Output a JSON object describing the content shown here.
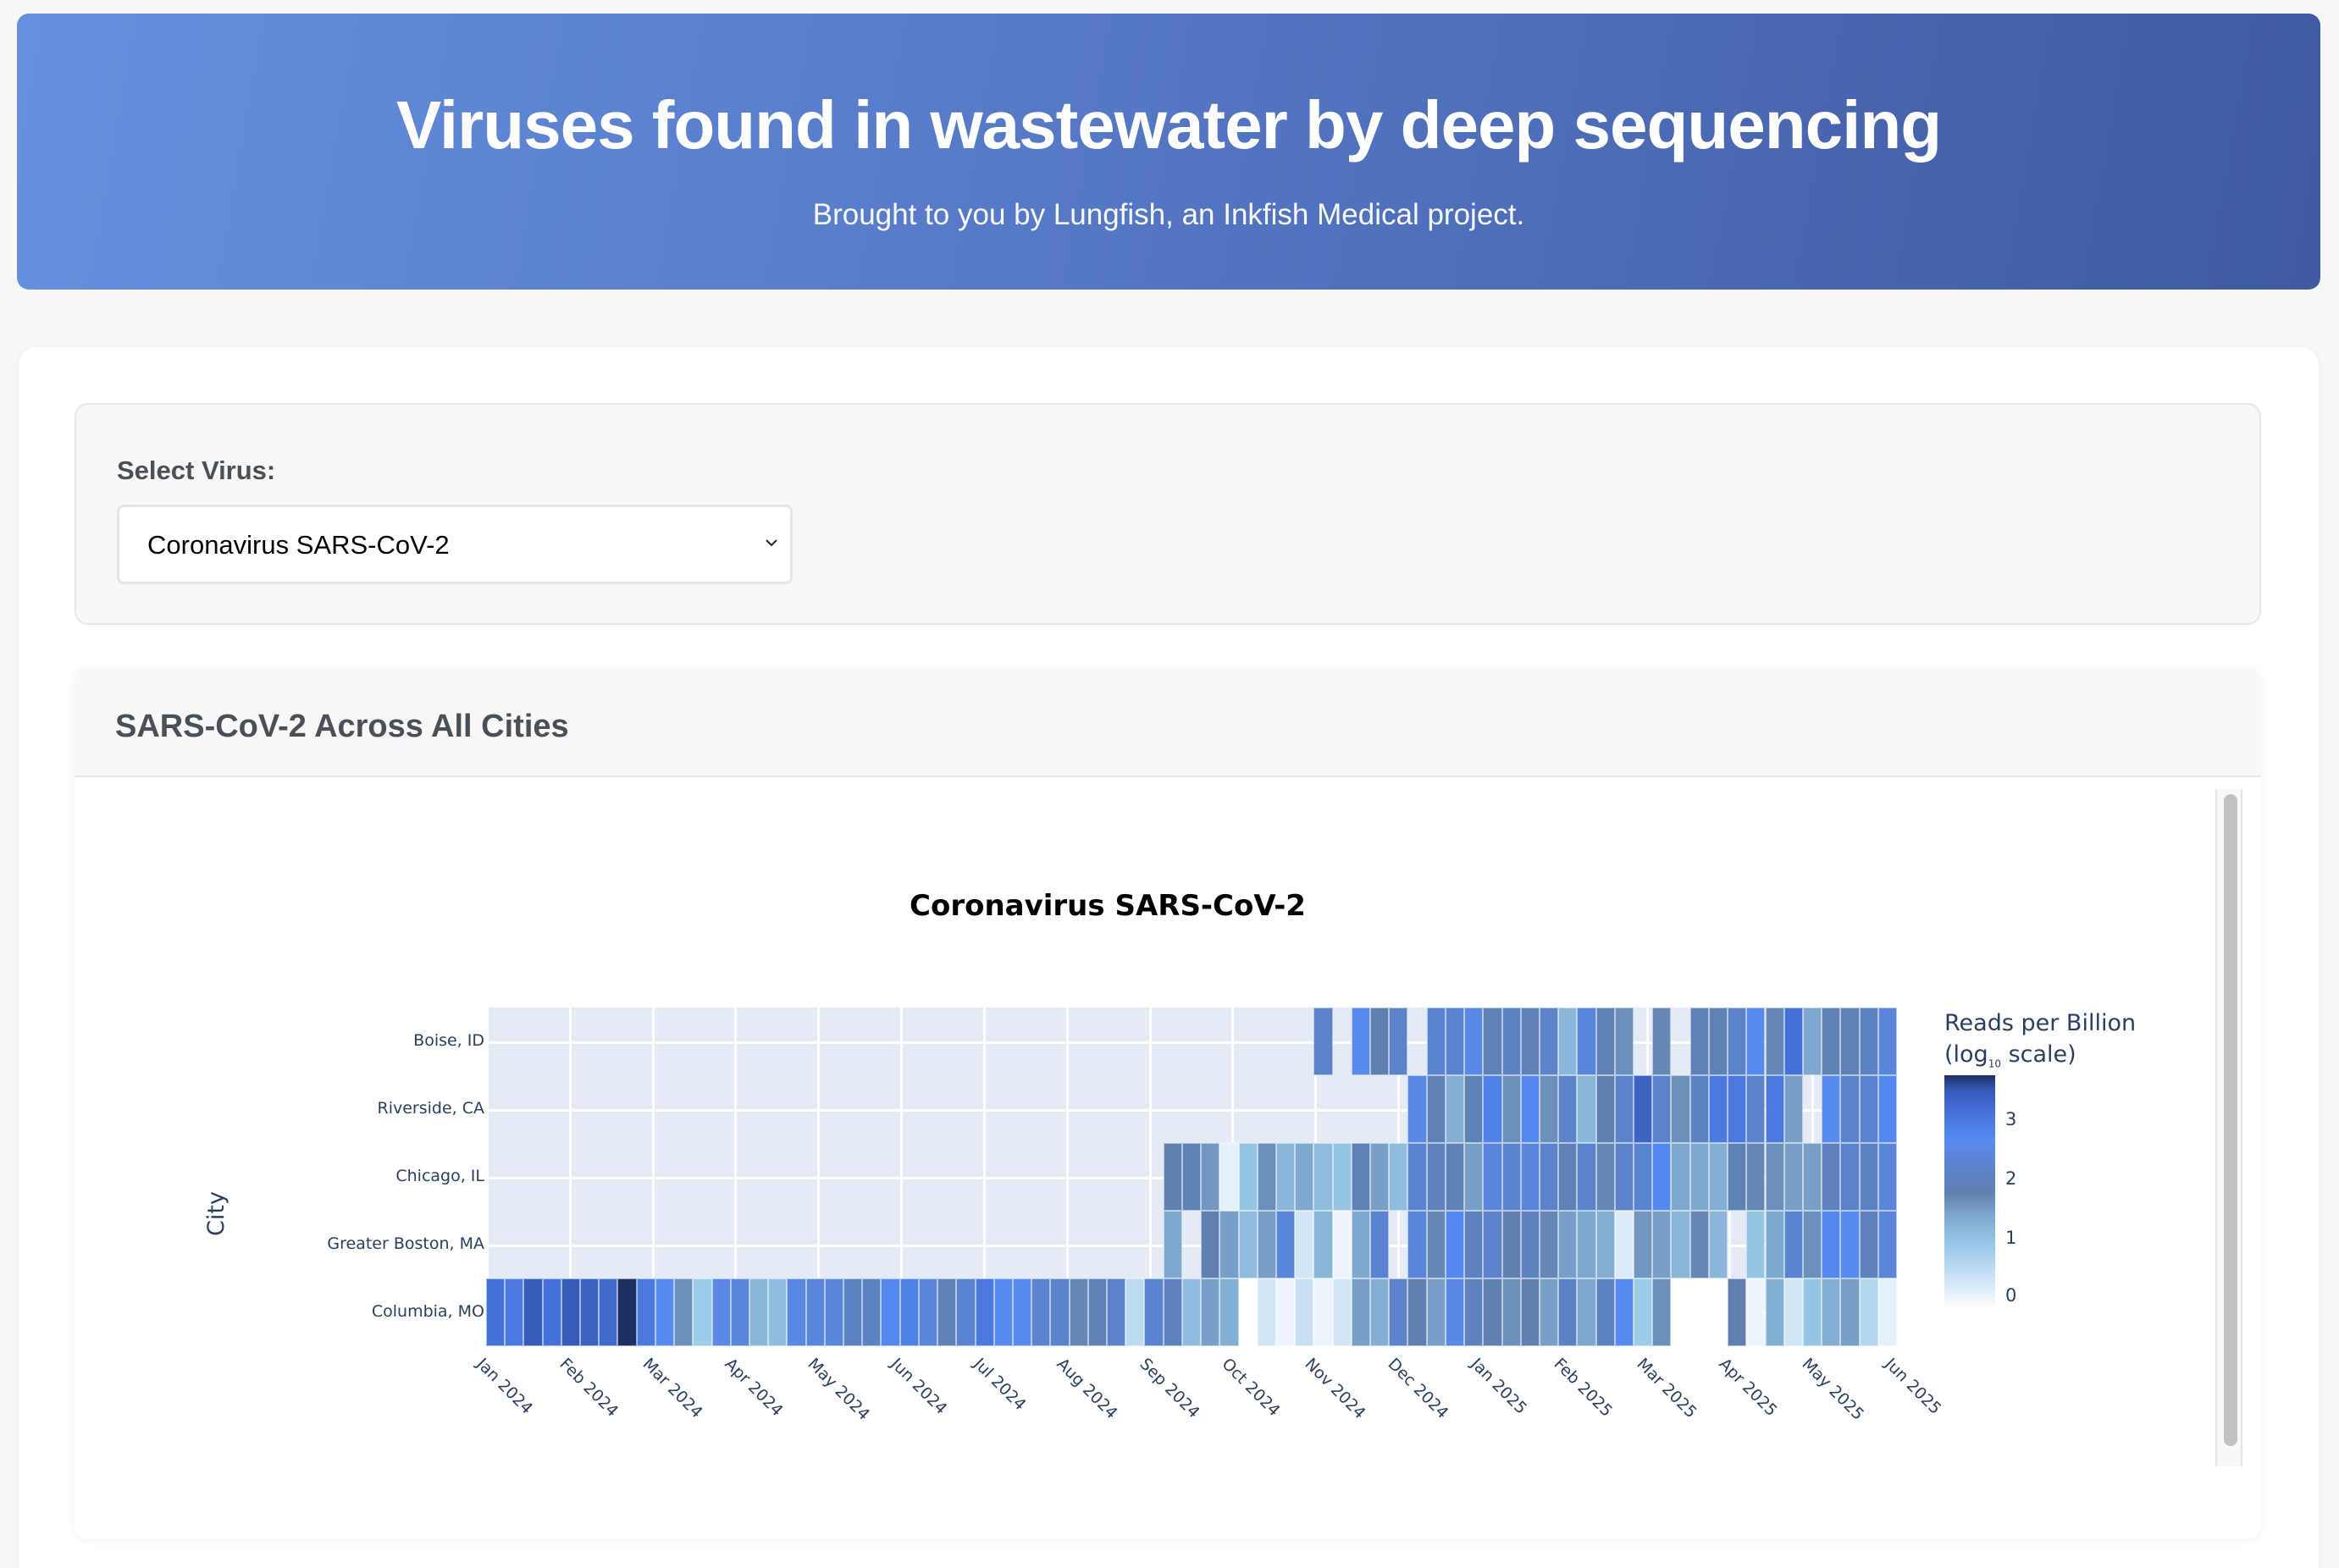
{
  "header": {
    "title": "Viruses found in wastewater by deep sequencing",
    "subtitle": "Brought to you by Lungfish, an Inkfish Medical project."
  },
  "controls": {
    "select_label": "Select Virus:",
    "selected_virus": "Coronavirus SARS-CoV-2"
  },
  "chart_card": {
    "heading": "SARS-CoV-2 Across All Cities"
  },
  "chart_data": {
    "type": "heatmap",
    "title": "Coronavirus SARS-CoV-2",
    "xlabel": "",
    "ylabel": "City",
    "x_tick_labels": [
      "Jan 2024",
      "Feb 2024",
      "Mar 2024",
      "Apr 2024",
      "May 2024",
      "Jun 2024",
      "Jul 2024",
      "Aug 2024",
      "Sep 2024",
      "Oct 2024",
      "Nov 2024",
      "Dec 2024",
      "Jan 2025",
      "Feb 2025",
      "Mar 2025",
      "Apr 2025",
      "May 2025",
      "Jun 2025"
    ],
    "x_unit": "week",
    "n_weeks": 75,
    "categories_y": [
      "Boise, ID",
      "Riverside, CA",
      "Chicago, IL",
      "Greater Boston, MA",
      "Columbia, MO"
    ],
    "colorbar": {
      "title": "Reads per Billion (log10 scale)",
      "ticks": [
        0,
        1,
        2,
        3
      ],
      "range": [
        0,
        3.9
      ]
    },
    "colorscale": [
      "#ffffff",
      "#d7e9f7",
      "#9ccbe8",
      "#7ea8cd",
      "#5f80b0",
      "#5b84d0",
      "#578cf2",
      "#4572d9",
      "#3558b3",
      "#1b2f63"
    ],
    "series": [
      {
        "name": "Boise, ID",
        "values": [
          null,
          null,
          null,
          null,
          null,
          null,
          null,
          null,
          null,
          null,
          null,
          null,
          null,
          null,
          null,
          null,
          null,
          null,
          null,
          null,
          null,
          null,
          null,
          null,
          null,
          null,
          null,
          null,
          null,
          null,
          null,
          null,
          null,
          null,
          null,
          null,
          null,
          null,
          null,
          null,
          null,
          null,
          null,
          null,
          2.4,
          null,
          2.8,
          2.0,
          2.4,
          null,
          2.5,
          2.5,
          2.7,
          2.1,
          2.3,
          2.1,
          2.4,
          1.3,
          2.6,
          2.1,
          1.8,
          null,
          1.9,
          null,
          2.1,
          2.1,
          2.4,
          2.8,
          1.9,
          3.2,
          1.5,
          2.1,
          2.1,
          2.3,
          2.6
        ]
      },
      {
        "name": "Riverside, CA",
        "values": [
          null,
          null,
          null,
          null,
          null,
          null,
          null,
          null,
          null,
          null,
          null,
          null,
          null,
          null,
          null,
          null,
          null,
          null,
          null,
          null,
          null,
          null,
          null,
          null,
          null,
          null,
          null,
          null,
          null,
          null,
          null,
          null,
          null,
          null,
          null,
          null,
          null,
          null,
          null,
          null,
          null,
          null,
          null,
          null,
          null,
          null,
          null,
          null,
          null,
          2.7,
          2.1,
          1.4,
          2.1,
          3.0,
          1.8,
          2.9,
          1.8,
          2.4,
          1.3,
          2.0,
          2.4,
          3.4,
          2.4,
          1.8,
          2.3,
          3.1,
          3.1,
          2.4,
          3.1,
          1.6,
          null,
          2.8,
          2.4,
          2.5,
          2.9
        ]
      },
      {
        "name": "Chicago, IL",
        "values": [
          null,
          null,
          null,
          null,
          null,
          null,
          null,
          null,
          null,
          null,
          null,
          null,
          null,
          null,
          null,
          null,
          null,
          null,
          null,
          null,
          null,
          null,
          null,
          null,
          null,
          null,
          null,
          null,
          null,
          null,
          null,
          null,
          null,
          null,
          null,
          null,
          2.0,
          2.1,
          1.7,
          0.3,
          1.1,
          1.8,
          1.3,
          1.5,
          1.2,
          1.1,
          2.1,
          1.6,
          1.2,
          2.5,
          2.2,
          2.1,
          1.6,
          2.6,
          2.5,
          2.6,
          2.4,
          2.1,
          2.4,
          1.9,
          2.4,
          2.5,
          2.9,
          1.5,
          1.5,
          1.4,
          2.1,
          1.9,
          1.8,
          1.6,
          1.6,
          2.2,
          2.4,
          2.3,
          2.6
        ]
      },
      {
        "name": "Greater Boston, MA",
        "values": [
          null,
          null,
          null,
          null,
          null,
          null,
          null,
          null,
          null,
          null,
          null,
          null,
          null,
          null,
          null,
          null,
          null,
          null,
          null,
          null,
          null,
          null,
          null,
          null,
          null,
          null,
          null,
          null,
          null,
          null,
          null,
          null,
          null,
          null,
          null,
          null,
          1.5,
          null,
          2.0,
          1.6,
          1.2,
          1.6,
          2.6,
          0.5,
          1.3,
          0.2,
          1.5,
          2.5,
          null,
          2.6,
          1.9,
          2.9,
          2.2,
          2.4,
          2.0,
          2.2,
          1.9,
          1.6,
          1.5,
          1.4,
          0.4,
          1.7,
          1.6,
          1.3,
          1.9,
          1.3,
          null,
          1.1,
          1.5,
          2.5,
          1.8,
          2.9,
          2.8,
          2.2,
          2.6
        ]
      },
      {
        "name": "Columbia, MO",
        "values": [
          3.2,
          3.1,
          3.5,
          3.2,
          3.5,
          3.4,
          3.3,
          3.9,
          3.1,
          2.8,
          1.8,
          1.0,
          2.7,
          2.6,
          1.3,
          1.2,
          2.7,
          2.6,
          2.6,
          2.3,
          2.3,
          2.9,
          3.0,
          2.6,
          2.1,
          2.5,
          3.1,
          2.8,
          2.8,
          2.5,
          2.4,
          1.9,
          2.1,
          2.4,
          0.7,
          2.5,
          2.2,
          1.2,
          1.6,
          1.4,
          0.0,
          0.5,
          0.2,
          0.6,
          0.2,
          0.5,
          1.6,
          1.4,
          2.4,
          2.0,
          1.6,
          2.7,
          2.2,
          2.0,
          1.8,
          2.0,
          1.6,
          2.3,
          1.5,
          2.3,
          2.8,
          1.0,
          1.8,
          0.0,
          0.0,
          0.0,
          2.0,
          0.2,
          1.4,
          0.5,
          1.1,
          1.4,
          1.6,
          0.8,
          0.3
        ]
      }
    ]
  },
  "colorbar_labels": {
    "title_line1": "Reads per Billion",
    "title_line2_pre": "(log",
    "title_sub": "10",
    "title_line2_post": " scale)",
    "t0": "0",
    "t1": "1",
    "t2": "2",
    "t3": "3"
  }
}
